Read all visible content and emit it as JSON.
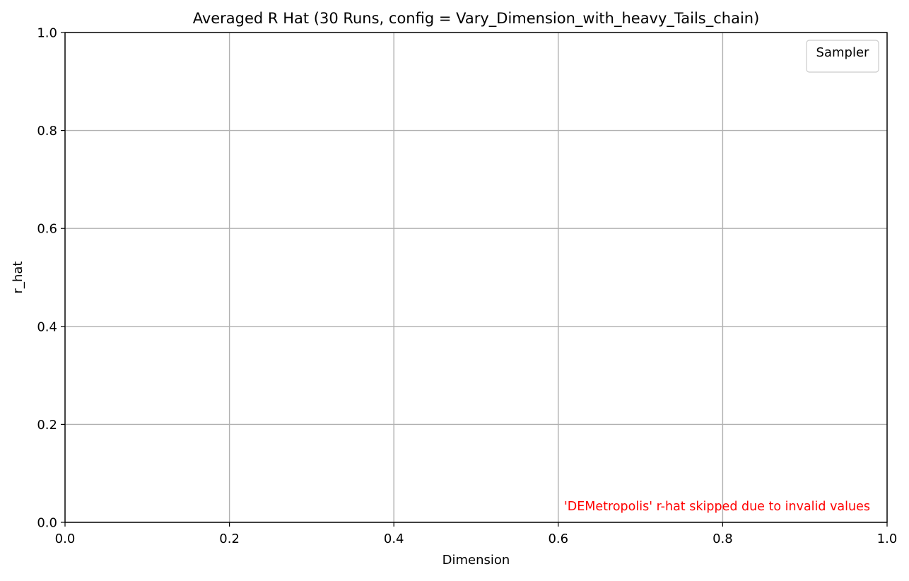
{
  "chart_data": {
    "type": "line",
    "title": "Averaged R Hat (30 Runs, config = Vary_Dimension_with_heavy_Tails_chain)",
    "xlabel": "Dimension",
    "ylabel": "r_hat",
    "xlim": [
      0.0,
      1.0
    ],
    "ylim": [
      0.0,
      1.0
    ],
    "x_ticks": [
      "0.0",
      "0.2",
      "0.4",
      "0.6",
      "0.8",
      "1.0"
    ],
    "y_ticks": [
      "0.0",
      "0.2",
      "0.4",
      "0.6",
      "0.8",
      "1.0"
    ],
    "grid": true,
    "series": [],
    "legend": {
      "title": "Sampler",
      "placement": "top-right",
      "entries": []
    },
    "annotations": [
      {
        "text": "'DEMetropolis' r-hat skipped due to invalid values",
        "color": "#ff0000",
        "anchor": "bottom-right"
      }
    ]
  },
  "colors": {
    "grid": "#b0b0b0",
    "axes": "#000000",
    "legend_border": "#cccccc",
    "annotation": "#ff0000"
  }
}
